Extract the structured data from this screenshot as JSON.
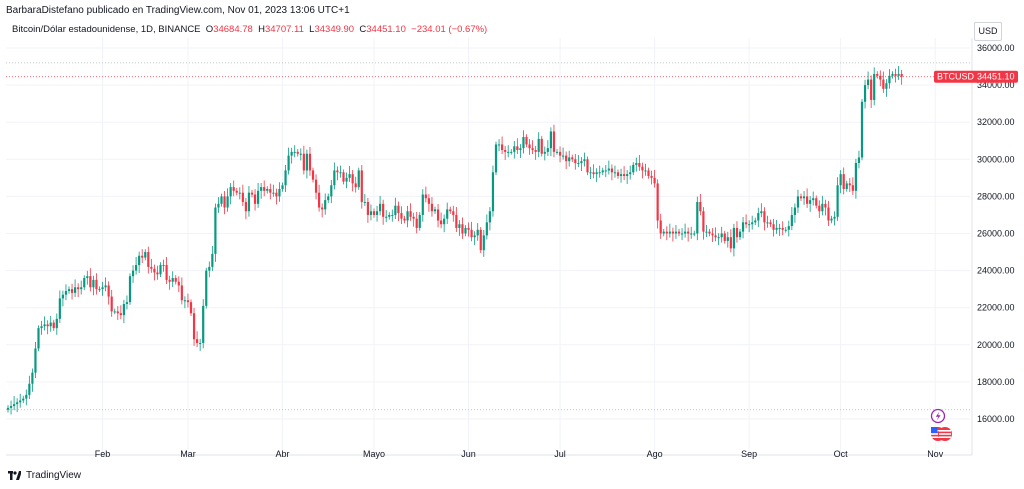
{
  "header": {
    "publisher_line": "BarbaraDistefano publicado en TradingView.com, Nov 01, 2023 13:06 UTC+1"
  },
  "legend": {
    "symbol_desc": "Bitcoin/Dólar estadounidense, 1D, BINANCE",
    "o_key": "O",
    "o_val": "34684.78",
    "h_key": "H",
    "h_val": "34707.11",
    "l_key": "L",
    "l_val": "34349.90",
    "c_key": "C",
    "c_val": "34451.10",
    "change": "−234.01 (−0.67%)"
  },
  "axis": {
    "currency": "USD",
    "price_tag_symbol": "BTCUSD",
    "price_tag_value": "34451.10"
  },
  "footer": {
    "brand": "TradingView"
  },
  "colors": {
    "up": "#089981",
    "down": "#f23645",
    "grid": "#f0f3fa"
  },
  "icons": [
    "lightning-icon",
    "us-flag-icon"
  ],
  "chart_data": {
    "type": "candlestick",
    "ylim": [
      15000,
      37000
    ],
    "yticks": [
      16000,
      18000,
      20000,
      22000,
      24000,
      26000,
      28000,
      30000,
      32000,
      34000,
      36000
    ],
    "ytick_labels": [
      "16000.00",
      "18000.00",
      "20000.00",
      "22000.00",
      "24000.00",
      "26000.00",
      "28000.00",
      "30000.00",
      "32000.00",
      "34000.00",
      "36000.00"
    ],
    "x_labels": [
      {
        "label": "Feb",
        "day": 31
      },
      {
        "label": "Mar",
        "day": 59
      },
      {
        "label": "Abr",
        "day": 90
      },
      {
        "label": "Mayo",
        "day": 120
      },
      {
        "label": "Jun",
        "day": 151
      },
      {
        "label": "Jul",
        "day": 181
      },
      {
        "label": "Ago",
        "day": 212
      },
      {
        "label": "Sep",
        "day": 243
      },
      {
        "label": "Oct",
        "day": 273
      },
      {
        "label": "Nov",
        "day": 304
      }
    ],
    "last_price": 34451.1,
    "hlines": [
      16500,
      35200
    ],
    "closes": [
      16600,
      16700,
      16800,
      16900,
      17000,
      17100,
      17300,
      17900,
      18500,
      19800,
      20900,
      21000,
      21100,
      21000,
      21200,
      20900,
      21400,
      22500,
      22700,
      22900,
      23000,
      22800,
      23100,
      23000,
      23100,
      23600,
      23700,
      23100,
      23500,
      23000,
      23000,
      23100,
      23200,
      22600,
      21800,
      21800,
      21700,
      21600,
      22200,
      22300,
      23700,
      24000,
      24300,
      24800,
      24700,
      25000,
      24200,
      24100,
      23900,
      23800,
      24300,
      24300,
      23500,
      23400,
      23600,
      23400,
      23200,
      22400,
      22400,
      22300,
      21700,
      20300,
      20100,
      20100,
      22100,
      24000,
      24200,
      24900,
      27400,
      27600,
      28000,
      27400,
      28000,
      28500,
      28300,
      28200,
      28200,
      27700,
      27200,
      28200,
      28100,
      27600,
      28300,
      28500,
      28300,
      28400,
      28200,
      28200,
      28000,
      28400,
      28600,
      29400,
      30200,
      30400,
      30400,
      30300,
      30300,
      29400,
      30300,
      29400,
      28900,
      28200,
      27400,
      27300,
      27800,
      28000,
      28600,
      29400,
      29300,
      29300,
      28800,
      29000,
      29200,
      28700,
      28500,
      29400,
      27700,
      27700,
      27000,
      27200,
      27000,
      27200,
      27600,
      26900,
      26900,
      27000,
      27000,
      27500,
      27100,
      26800,
      26700,
      27200,
      26900,
      26800,
      26300,
      27000,
      28100,
      27900,
      27600,
      27200,
      27300,
      26700,
      26500,
      26800,
      27300,
      27200,
      27000,
      26300,
      26500,
      26000,
      26300,
      26200,
      25800,
      25900,
      26200,
      25100,
      25900,
      26600,
      27200,
      29300,
      30800,
      30800,
      30500,
      30400,
      30400,
      30400,
      30700,
      30500,
      30600,
      31200,
      30800,
      30600,
      30500,
      30400,
      31100,
      30300,
      30400,
      30600,
      31500,
      30400,
      30400,
      30200,
      30200,
      29900,
      30100,
      30000,
      29800,
      29800,
      29900,
      30000,
      29300,
      29300,
      29200,
      29300,
      29300,
      29400,
      29400,
      29500,
      29300,
      29300,
      29100,
      29200,
      29100,
      29200,
      29300,
      29700,
      29800,
      29600,
      29400,
      29400,
      29100,
      29000,
      28700,
      26700,
      26000,
      26100,
      26000,
      26100,
      26000,
      26100,
      26000,
      26000,
      26100,
      26000,
      26000,
      26000,
      27700,
      27200,
      26100,
      26100,
      26000,
      25900,
      25800,
      25800,
      26000,
      25600,
      25800,
      25200,
      26300,
      25800,
      26100,
      26600,
      26500,
      26500,
      26600,
      26700,
      27100,
      27200,
      26600,
      26600,
      26500,
      26200,
      26300,
      26300,
      26200,
      26200,
      26400,
      27000,
      27400,
      28000,
      27900,
      28000,
      27600,
      27800,
      27900,
      27500,
      27200,
      27600,
      27400,
      26700,
      26800,
      26900,
      28600,
      29200,
      28400,
      28700,
      28600,
      28300,
      29800,
      30100,
      33100,
      34000,
      34300,
      33200,
      34600,
      34500,
      34300,
      33800,
      34100,
      34500,
      34600,
      34500,
      34600,
      34451
    ]
  }
}
